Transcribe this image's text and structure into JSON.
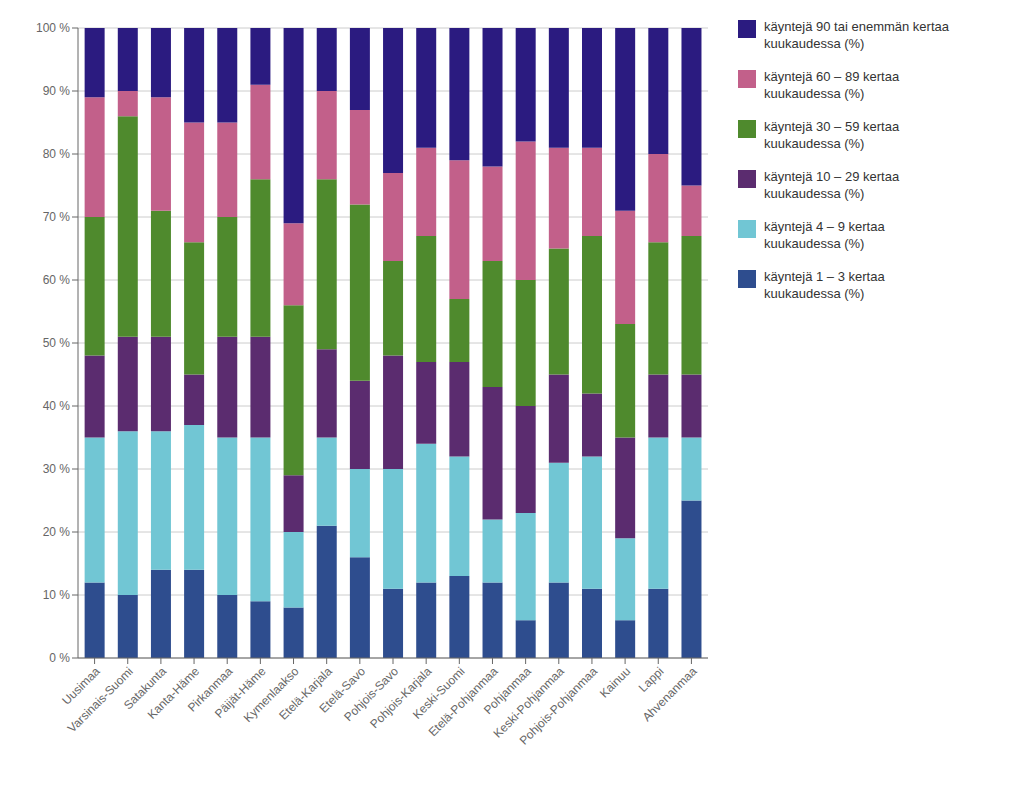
{
  "chart_data": {
    "type": "bar",
    "stacked": true,
    "grid": true,
    "legend": "right",
    "categories": [
      "Uusimaa",
      "Varsinais-Suomi",
      "Satakunta",
      "Kanta-Häme",
      "Pirkanmaa",
      "Päijät-Häme",
      "Kymenlaakso",
      "Etelä-Karjala",
      "Etelä-Savo",
      "Pohjois-Savo",
      "Pohjois-Karjala",
      "Keski-Suomi",
      "Etelä-Pohjanmaa",
      "Pohjanmaa",
      "Keski-Pohjanmaa",
      "Pohjois-Pohjanmaa",
      "Kainuu",
      "Lappi",
      "Ahvenanmaa"
    ],
    "series": [
      {
        "name": "käyntejä 1 – 3 kertaa\nkuukaudessa (%)",
        "color": "#2E4D8E",
        "values": [
          12,
          10,
          14,
          14,
          10,
          9,
          8,
          21,
          16,
          11,
          12,
          13,
          12,
          6,
          12,
          11,
          6,
          11,
          25
        ]
      },
      {
        "name": "käyntejä 4 – 9 kertaa\nkuukaudessa (%)",
        "color": "#71C6D4",
        "values": [
          23,
          26,
          22,
          23,
          25,
          26,
          12,
          14,
          14,
          19,
          22,
          19,
          10,
          17,
          19,
          21,
          13,
          24,
          10
        ]
      },
      {
        "name": "käyntejä 10 – 29 kertaa\nkuukaudessa (%)",
        "color": "#5B2C6F",
        "values": [
          13,
          15,
          15,
          8,
          16,
          16,
          9,
          14,
          14,
          18,
          13,
          15,
          21,
          17,
          14,
          10,
          16,
          10,
          10
        ]
      },
      {
        "name": "käyntejä 30 – 59 kertaa\nkuukaudessa (%)",
        "color": "#4F8A2D",
        "values": [
          22,
          35,
          20,
          21,
          19,
          25,
          27,
          27,
          28,
          15,
          20,
          10,
          20,
          20,
          20,
          25,
          18,
          21,
          22
        ]
      },
      {
        "name": "käyntejä 60 – 89 kertaa\nkuukaudessa (%)",
        "color": "#C2608A",
        "values": [
          19,
          4,
          18,
          19,
          15,
          15,
          13,
          14,
          15,
          14,
          14,
          22,
          15,
          22,
          16,
          14,
          18,
          14,
          8
        ]
      },
      {
        "name": "käyntejä 90 tai enemmän kertaa\nkuukaudessa (%)",
        "color": "#2B1B80",
        "values": [
          11,
          10,
          11,
          15,
          15,
          9,
          31,
          10,
          13,
          23,
          19,
          21,
          22,
          18,
          19,
          19,
          29,
          20,
          25
        ]
      }
    ],
    "ylim": [
      0,
      100
    ],
    "yticks": [
      {
        "value": 0,
        "label": "0 %"
      },
      {
        "value": 10,
        "label": "10 %"
      },
      {
        "value": 20,
        "label": "20 %"
      },
      {
        "value": 30,
        "label": "30 %"
      },
      {
        "value": 40,
        "label": "40 %"
      },
      {
        "value": 50,
        "label": "50 %"
      },
      {
        "value": 60,
        "label": "60 %"
      },
      {
        "value": 70,
        "label": "70 %"
      },
      {
        "value": 80,
        "label": "80 %"
      },
      {
        "value": 90,
        "label": "90 %"
      },
      {
        "value": 100,
        "label": "100 %"
      }
    ]
  }
}
